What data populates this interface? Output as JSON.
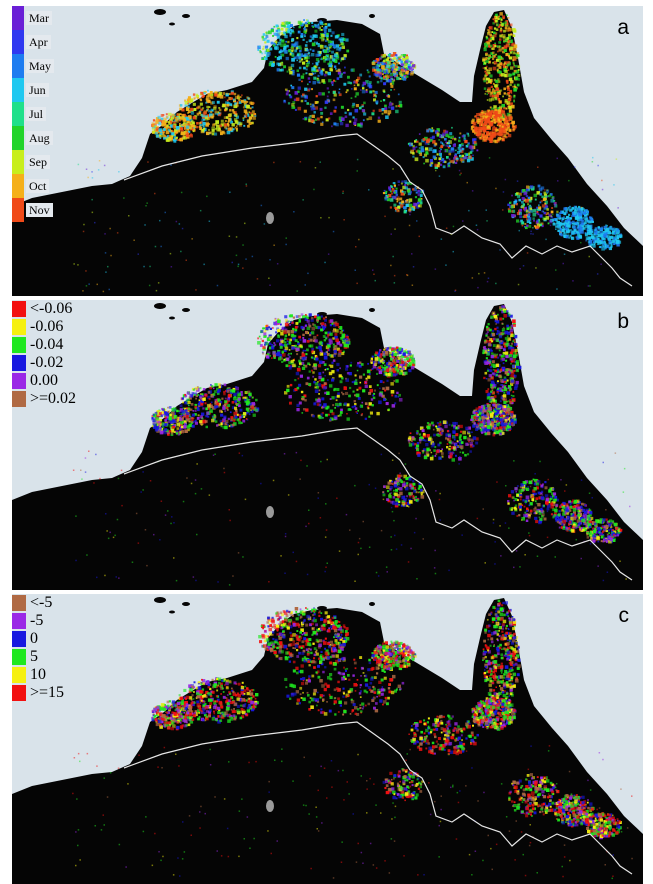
{
  "panels": [
    {
      "letter": "a",
      "legend": [
        {
          "label": "Mar",
          "color": "#6a1fd6"
        },
        {
          "label": "Apr",
          "color": "#2f38f0"
        },
        {
          "label": "May",
          "color": "#1e7cf0"
        },
        {
          "label": "Jun",
          "color": "#1fc8f0"
        },
        {
          "label": "Jul",
          "color": "#1fe08a"
        },
        {
          "label": "Aug",
          "color": "#22d42a"
        },
        {
          "label": "Sep",
          "color": "#c8ee1c"
        },
        {
          "label": "Oct",
          "color": "#f5b01a"
        },
        {
          "label": "Nov",
          "color": "#f04a18"
        }
      ]
    },
    {
      "letter": "b",
      "legend": [
        {
          "label": "<-0.06",
          "color": "#f21010"
        },
        {
          "label": "-0.06",
          "color": "#f6f010"
        },
        {
          "label": "-0.04",
          "color": "#1fe81f"
        },
        {
          "label": "-0.02",
          "color": "#1818e0"
        },
        {
          "label": "0.00",
          "color": "#9a28e6"
        },
        {
          "label": ">=0.02",
          "color": "#b06a44"
        }
      ]
    },
    {
      "letter": "c",
      "legend": [
        {
          "label": "<-5",
          "color": "#b06a44"
        },
        {
          "label": "-5",
          "color": "#9a28e6"
        },
        {
          "label": "0",
          "color": "#1818e0"
        },
        {
          "label": "5",
          "color": "#1fe81f"
        },
        {
          "label": "10",
          "color": "#f6f010"
        },
        {
          "label": ">=15",
          "color": "#f21010"
        }
      ]
    }
  ],
  "colors": {
    "ocean": "#d9e3ea",
    "land": "#050505",
    "boundary": "#e6e6e6"
  }
}
